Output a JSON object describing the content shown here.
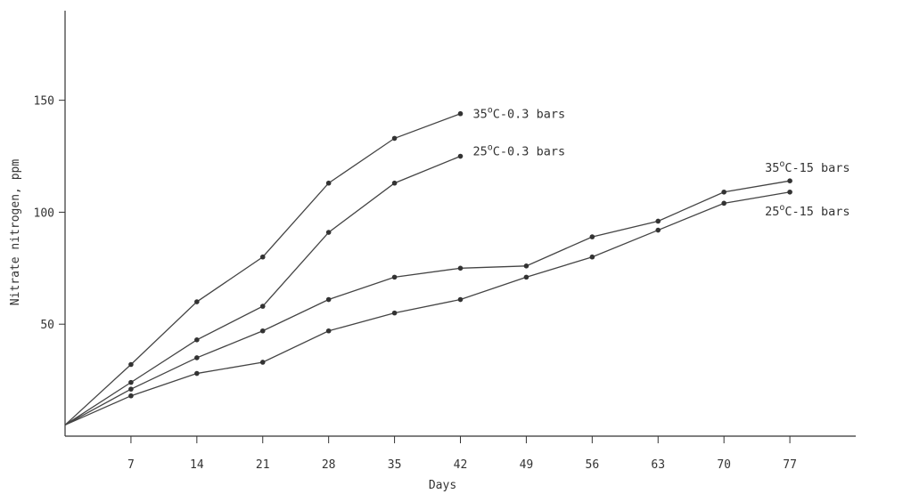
{
  "chart_data": {
    "type": "line",
    "xlabel": "Days",
    "ylabel": "Nitrate nitrogen, ppm",
    "x_ticks": [
      7,
      14,
      21,
      28,
      35,
      42,
      49,
      56,
      63,
      70,
      77
    ],
    "y_ticks": [
      50,
      100,
      150
    ],
    "xlim": [
      0,
      84
    ],
    "ylim": [
      0,
      190
    ],
    "grid": false,
    "series": [
      {
        "name": "35°C-0.3 bars",
        "label_display": {
          "pre": "35",
          "sup": "o",
          "post": "C-0.3 bars"
        },
        "x": [
          0,
          7,
          14,
          21,
          28,
          35,
          42
        ],
        "y": [
          5,
          32,
          60,
          80,
          113,
          133,
          144
        ]
      },
      {
        "name": "25°C-0.3 bars",
        "label_display": {
          "pre": "25",
          "sup": "o",
          "post": "C-0.3 bars"
        },
        "x": [
          0,
          7,
          14,
          21,
          28,
          35,
          42
        ],
        "y": [
          5,
          24,
          43,
          58,
          91,
          113,
          125
        ]
      },
      {
        "name": "35°C-15 bars",
        "label_display": {
          "pre": "35",
          "sup": "o",
          "post": "C-15 bars"
        },
        "x": [
          0,
          7,
          14,
          21,
          28,
          35,
          42,
          49,
          56,
          63,
          70,
          77
        ],
        "y": [
          5,
          21,
          35,
          47,
          61,
          71,
          75,
          76,
          89,
          96,
          109,
          114
        ]
      },
      {
        "name": "25°C-15 bars",
        "label_display": {
          "pre": "25",
          "sup": "o",
          "post": "C-15 bars"
        },
        "x": [
          0,
          7,
          14,
          21,
          28,
          35,
          42,
          49,
          56,
          63,
          70,
          77
        ],
        "y": [
          5,
          18,
          28,
          33,
          47,
          55,
          61,
          71,
          80,
          92,
          104,
          109
        ]
      }
    ]
  }
}
